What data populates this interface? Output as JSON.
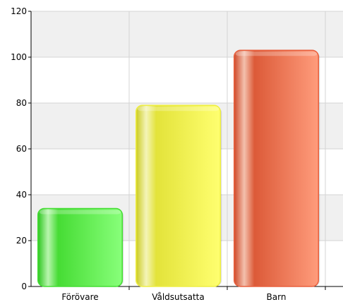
{
  "chart_data": {
    "type": "bar",
    "categories": [
      "Förövare",
      "Våldsutsatta",
      "Barn"
    ],
    "values": [
      34,
      79,
      103
    ],
    "ylim": [
      0,
      120
    ],
    "yticks": [
      0,
      20,
      40,
      60,
      80,
      100,
      120
    ],
    "grid": true,
    "bar_colors": [
      "#44dd33",
      "#eeee44",
      "#e8603e"
    ]
  }
}
